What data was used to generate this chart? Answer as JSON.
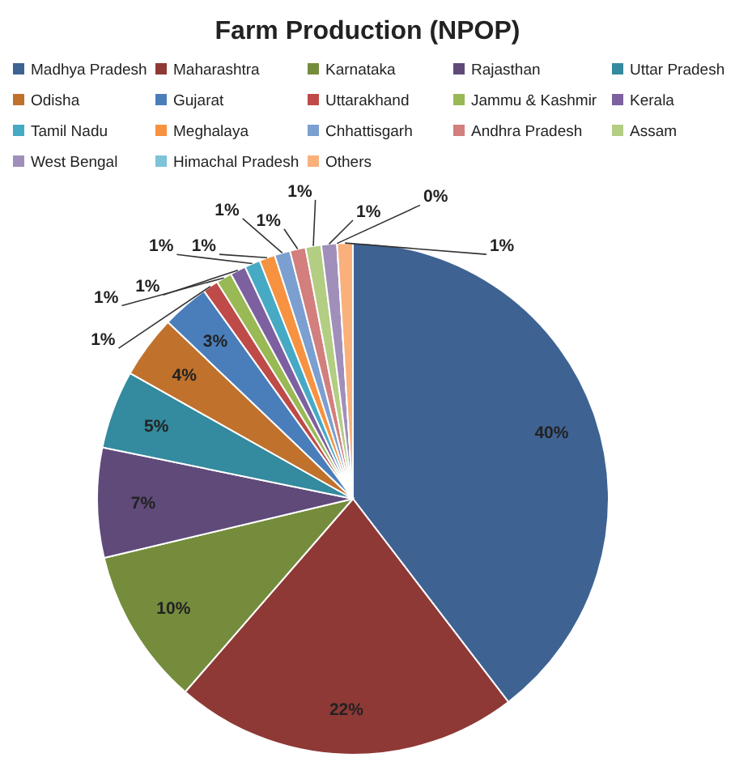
{
  "chart_data": {
    "type": "pie",
    "title": "Farm Production (NPOP)",
    "categories": [
      "Madhya Pradesh",
      "Maharashtra",
      "Karnataka",
      "Rajasthan",
      "Uttar Pradesh",
      "Odisha",
      "Gujarat",
      "Uttarakhand",
      "Jammu & Kashmir",
      "Kerala",
      "Tamil Nadu",
      "Meghalaya",
      "Chhattisgarh",
      "Andhra Pradesh",
      "Assam",
      "West Bengal",
      "Himachal Pradesh",
      "Others"
    ],
    "values": [
      40,
      22,
      10,
      7,
      5,
      4,
      3,
      1,
      1,
      1,
      1,
      1,
      1,
      1,
      1,
      1,
      0,
      1
    ],
    "value_labels": [
      "40%",
      "22%",
      "10%",
      "7%",
      "5%",
      "4%",
      "3%",
      "1%",
      "1%",
      "1%",
      "1%",
      "1%",
      "1%",
      "1%",
      "1%",
      "1%",
      "0%",
      "1%"
    ],
    "colors": [
      "#3e6393",
      "#8e3936",
      "#748c3c",
      "#5f4a7a",
      "#348a9e",
      "#c0712c",
      "#4a7ebb",
      "#be4b48",
      "#98b954",
      "#7d60a0",
      "#46aac5",
      "#f69240",
      "#7b9fd0",
      "#d27f7d",
      "#b3cd83",
      "#a08fba",
      "#7dc3d9",
      "#f9b07a"
    ],
    "legend": "top"
  }
}
